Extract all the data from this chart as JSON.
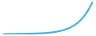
{
  "line_color": "#3ea8d8",
  "linewidth": 1.5,
  "background_color": "#ffffff",
  "x": [
    0,
    1,
    2,
    3,
    4,
    5,
    6,
    7,
    8,
    9,
    10,
    11,
    12,
    13,
    14,
    15,
    16,
    17,
    18,
    19,
    20,
    21,
    22,
    23,
    24,
    25
  ],
  "y": [
    100,
    101,
    102,
    103,
    104,
    105,
    106,
    107,
    108,
    110,
    112,
    115,
    119,
    124,
    131,
    140,
    152,
    168,
    188,
    214,
    248,
    292,
    348,
    420,
    510,
    620
  ]
}
